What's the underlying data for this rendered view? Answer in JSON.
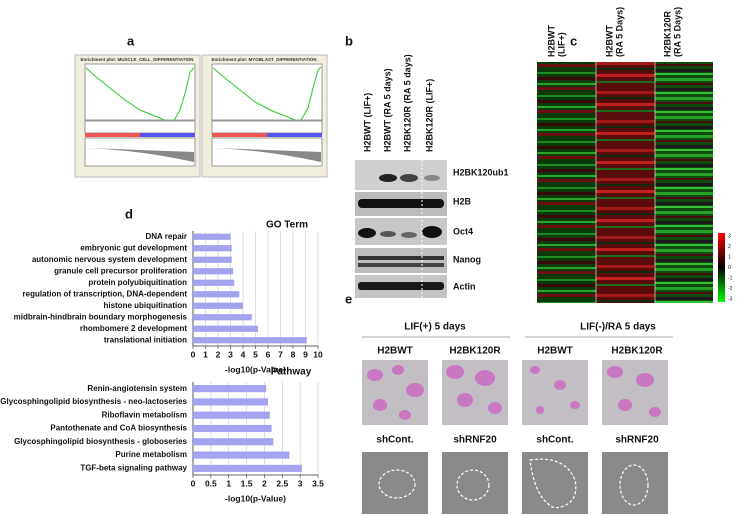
{
  "panel_labels": [
    "a",
    "b",
    "c",
    "d",
    "e"
  ],
  "gsea": {
    "plots": [
      {
        "title": "Enrichment plot: MUSCLE_CELL_DIFFERENTIATION"
      },
      {
        "title": "Enrichment plot: MYOBLAST_DIFFERENTIATION"
      }
    ]
  },
  "western_blot": {
    "lanes": [
      "H2BWT (LIF+)",
      "H2BWT (RA 5 days)",
      "H2BK120R (RA 5 days)",
      "H2BK120R (LIF+)"
    ],
    "bands": [
      "H2BK120ub1",
      "H2B",
      "Oct4",
      "Nanog",
      "Actin"
    ]
  },
  "heatmap": {
    "columns": [
      [
        "H2BWT",
        "(LIF+)"
      ],
      [
        "H2BWT",
        "(RA 5 Days)"
      ],
      [
        "H2BK120R",
        "(RA 5 Days)"
      ]
    ],
    "colorbar_ticks": [
      3,
      2,
      1,
      0,
      -1,
      -2,
      -3
    ]
  },
  "chart_data": [
    {
      "type": "bar",
      "orientation": "horizontal",
      "title": "GO Term",
      "x_label": "-log10(p-Value)",
      "categories": [
        "DNA repair",
        "embryonic gut development",
        "autonomic nervous system development",
        "granule cell precursor proliferation",
        "protein polyubiquitination",
        "regulation of transcription, DNA-dependent",
        "histone ubiquitination",
        "midbrain-hindbrain boundary morphogenesis",
        "rhombomere 2 development",
        "translational initiation"
      ],
      "values": [
        3.0,
        3.1,
        3.1,
        3.2,
        3.3,
        3.7,
        4.0,
        4.7,
        5.2,
        9.1
      ],
      "label_colors": [
        "#111111",
        "#9b1c1c",
        "#9b1c1c",
        "#111111",
        "#111111",
        "#111111",
        "#111111",
        "#9b1c1c",
        "#9b1c1c",
        "#111111"
      ],
      "color": "#a3a3ef",
      "xlim": [
        0,
        10
      ],
      "xticks": [
        0,
        1,
        2,
        3,
        4,
        5,
        6,
        7,
        8,
        9,
        10
      ],
      "grid": true
    },
    {
      "type": "bar",
      "orientation": "horizontal",
      "title": "Pathway",
      "x_label": "-log10(p-Value)",
      "categories": [
        "Renin-angiotensin system",
        "Glycosphingolipid biosynthesis - neo-lactoseries",
        "Riboflavin metabolism",
        "Pantothenate and CoA biosynthesis",
        "Glycosphingolipid biosynthesis - globoseries",
        "Purine metabolism",
        "TGF-beta signaling pathway"
      ],
      "values": [
        2.05,
        2.1,
        2.15,
        2.2,
        2.25,
        2.7,
        3.05
      ],
      "label_colors": [
        "#111111",
        "#111111",
        "#111111",
        "#111111",
        "#111111",
        "#111111",
        "#111111"
      ],
      "color": "#a3a3ef",
      "xlim": [
        0,
        3.5
      ],
      "xticks": [
        0,
        0.5,
        1,
        1.5,
        2,
        2.5,
        3,
        3.5
      ],
      "grid": true
    }
  ],
  "images": {
    "conditions": [
      "LIF(+) 5 days",
      "LIF(-)/RA  5 days"
    ],
    "row1": [
      "H2BWT",
      "H2BK120R",
      "H2BWT",
      "H2BK120R"
    ],
    "row2": [
      "shCont.",
      "shRNF20",
      "shCont.",
      "shRNF20"
    ]
  }
}
